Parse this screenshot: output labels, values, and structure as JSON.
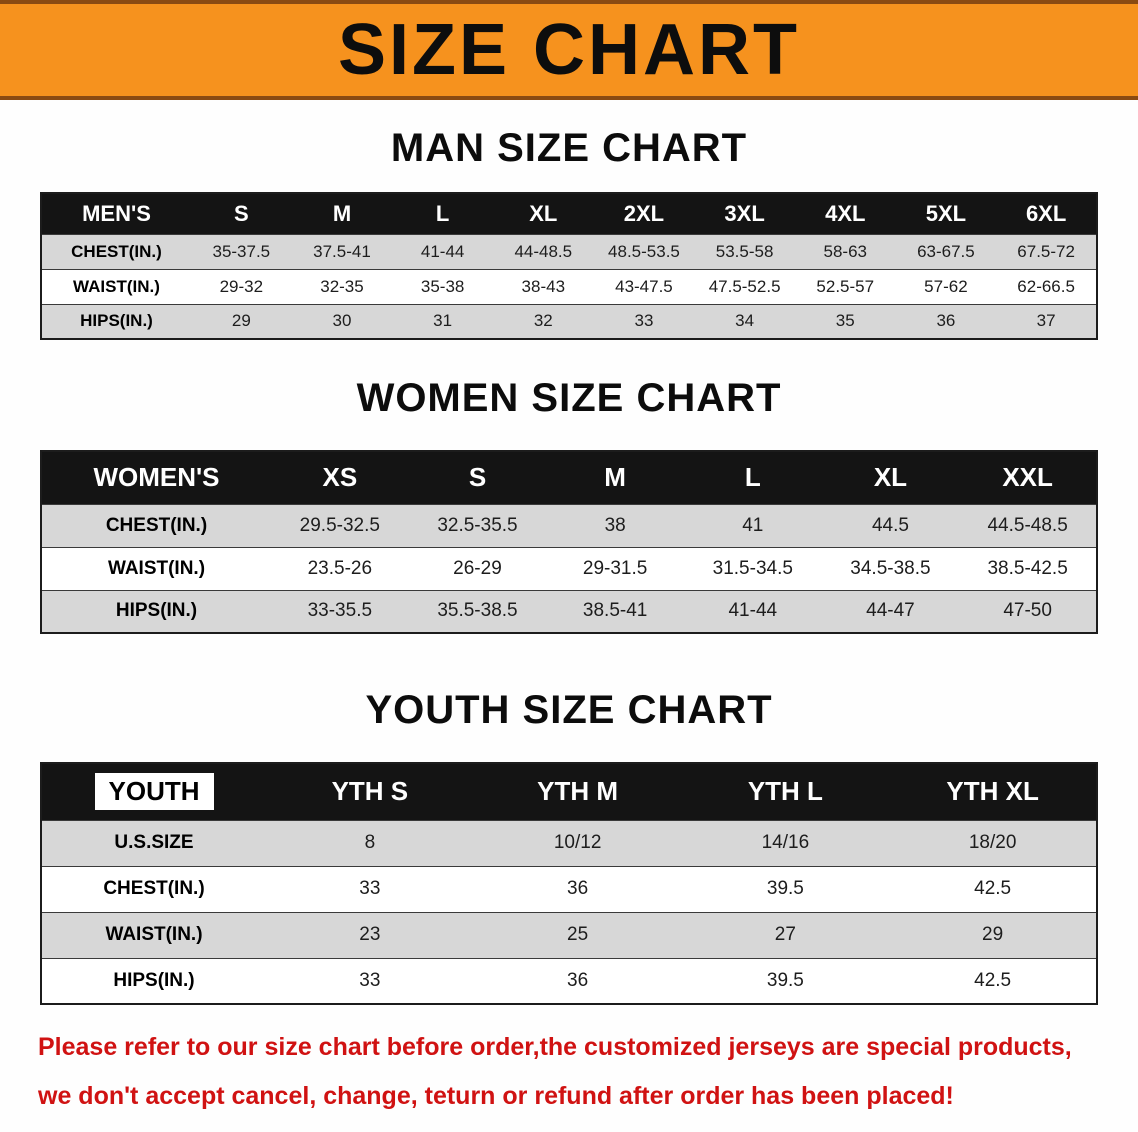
{
  "banner": {
    "title": "SIZE CHART"
  },
  "colors": {
    "banner_orange": "#f6921e",
    "table_header_black": "#141414",
    "row_gray": "#d7d7d7",
    "note_red": "#d01212"
  },
  "tables": [
    {
      "id": "men",
      "heading": "MAN SIZE CHART",
      "corner_label": "MEN'S",
      "columns": [
        "S",
        "M",
        "L",
        "XL",
        "2XL",
        "3XL",
        "4XL",
        "5XL",
        "6XL"
      ],
      "rows": [
        {
          "label": "CHEST(IN.)",
          "values": [
            "35-37.5",
            "37.5-41",
            "41-44",
            "44-48.5",
            "48.5-53.5",
            "53.5-58",
            "58-63",
            "63-67.5",
            "67.5-72"
          ]
        },
        {
          "label": "WAIST(IN.)",
          "values": [
            "29-32",
            "32-35",
            "35-38",
            "38-43",
            "43-47.5",
            "47.5-52.5",
            "52.5-57",
            "57-62",
            "62-66.5"
          ]
        },
        {
          "label": "HIPS(IN.)",
          "values": [
            "29",
            "30",
            "31",
            "32",
            "33",
            "34",
            "35",
            "36",
            "37"
          ]
        }
      ]
    },
    {
      "id": "women",
      "heading": "WOMEN SIZE CHART",
      "corner_label": "WOMEN'S",
      "columns": [
        "XS",
        "S",
        "M",
        "L",
        "XL",
        "XXL"
      ],
      "rows": [
        {
          "label": "CHEST(IN.)",
          "values": [
            "29.5-32.5",
            "32.5-35.5",
            "38",
            "41",
            "44.5",
            "44.5-48.5"
          ]
        },
        {
          "label": "WAIST(IN.)",
          "values": [
            "23.5-26",
            "26-29",
            "29-31.5",
            "31.5-34.5",
            "34.5-38.5",
            "38.5-42.5"
          ]
        },
        {
          "label": "HIPS(IN.)",
          "values": [
            "33-35.5",
            "35.5-38.5",
            "38.5-41",
            "41-44",
            "44-47",
            "47-50"
          ]
        }
      ]
    },
    {
      "id": "youth",
      "heading": "YOUTH SIZE CHART",
      "corner_label": "YOUTH",
      "columns": [
        "YTH S",
        "YTH M",
        "YTH L",
        "YTH XL"
      ],
      "rows": [
        {
          "label": "U.S.SIZE",
          "values": [
            "8",
            "10/12",
            "14/16",
            "18/20"
          ]
        },
        {
          "label": "CHEST(IN.)",
          "values": [
            "33",
            "36",
            "39.5",
            "42.5"
          ]
        },
        {
          "label": "WAIST(IN.)",
          "values": [
            "23",
            "25",
            "27",
            "29"
          ]
        },
        {
          "label": "HIPS(IN.)",
          "values": [
            "33",
            "36",
            "39.5",
            "42.5"
          ]
        }
      ]
    }
  ],
  "note": {
    "line1": "Please refer to our size chart before order,the customized jerseys are special products,",
    "line2": "we don't accept cancel, change, teturn or refund after order has been placed!"
  }
}
